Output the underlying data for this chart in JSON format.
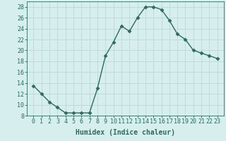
{
  "x": [
    0,
    1,
    2,
    3,
    4,
    5,
    6,
    7,
    8,
    9,
    10,
    11,
    12,
    13,
    14,
    15,
    16,
    17,
    18,
    19,
    20,
    21,
    22,
    23
  ],
  "y": [
    13.5,
    12,
    10.5,
    9.5,
    8.5,
    8.5,
    8.5,
    8.5,
    13,
    19,
    21.5,
    24.5,
    23.5,
    26,
    28,
    28,
    27.5,
    25.5,
    23,
    22,
    20,
    19.5,
    19,
    18.5
  ],
  "line_color": "#2d6b5e",
  "marker": "D",
  "marker_size": 2.5,
  "bg_color": "#d6eeee",
  "grid_color": "#b8d4d4",
  "xlabel": "Humidex (Indice chaleur)",
  "xlabel_fontsize": 7,
  "xlabel_bold": true,
  "ylim": [
    8,
    29
  ],
  "yticks": [
    8,
    10,
    12,
    14,
    16,
    18,
    20,
    22,
    24,
    26,
    28
  ],
  "xticks": [
    0,
    1,
    2,
    3,
    4,
    5,
    6,
    7,
    8,
    9,
    10,
    11,
    12,
    13,
    14,
    15,
    16,
    17,
    18,
    19,
    20,
    21,
    22,
    23
  ],
  "tick_fontsize": 6,
  "line_width": 1.0
}
